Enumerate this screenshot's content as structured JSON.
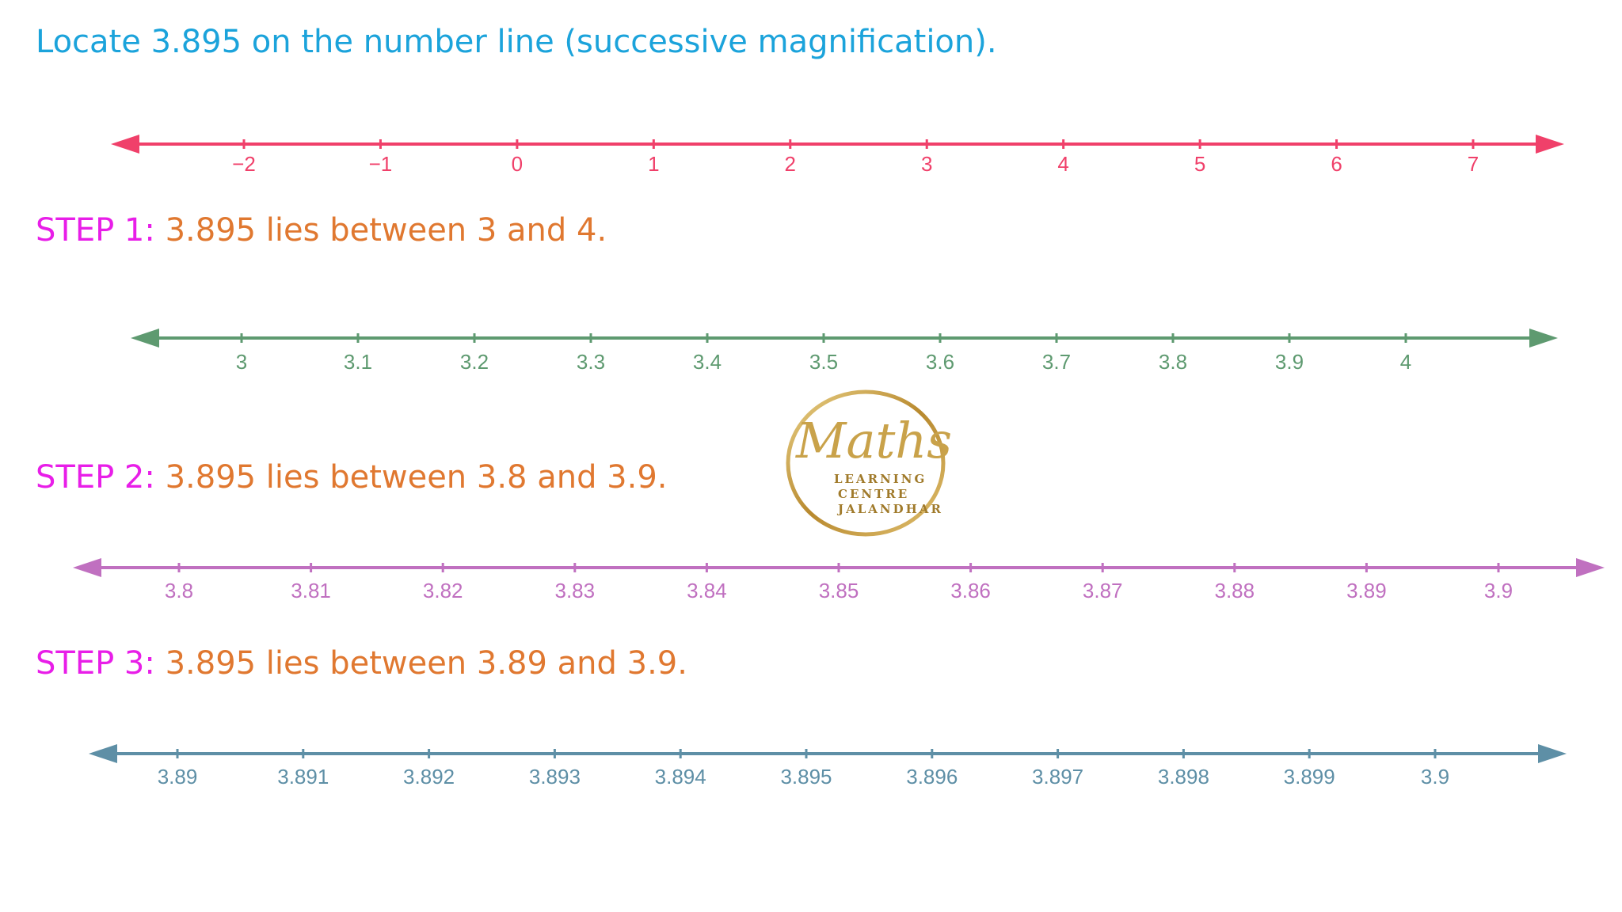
{
  "heading": "Locate 3.895 on the number line (successive magnification).",
  "steps": [
    {
      "label": "STEP 1:",
      "text": " 3.895 lies between 3 and 4."
    },
    {
      "label": "STEP 2:",
      "text": " 3.895 lies between 3.8 and 3.9."
    },
    {
      "label": "STEP 3:",
      "text": " 3.895 lies between 3.89 and 3.9."
    }
  ],
  "logo": {
    "script": "Maths",
    "line1": "LEARNING",
    "line2": "CENTRE",
    "line3": "JALANDHAR"
  },
  "colors": {
    "heading": "#1ba3db",
    "step_label": "#e81ee8",
    "step_text": "#e07830",
    "line0": "#f0406a",
    "line1": "#5e9a70",
    "line2": "#c070c0",
    "line3": "#5e8fa6",
    "logo_gold": "#c9a24a"
  },
  "number_lines": [
    {
      "name": "integers",
      "color": "#f0406a",
      "ticks": [
        "−2",
        "−1",
        "0",
        "1",
        "2",
        "3",
        "4",
        "5",
        "6",
        "7"
      ]
    },
    {
      "name": "tenths",
      "color": "#5e9a70",
      "ticks": [
        "3",
        "3.1",
        "3.2",
        "3.3",
        "3.4",
        "3.5",
        "3.6",
        "3.7",
        "3.8",
        "3.9",
        "4"
      ]
    },
    {
      "name": "hundredths",
      "color": "#c070c0",
      "ticks": [
        "3.8",
        "3.81",
        "3.82",
        "3.83",
        "3.84",
        "3.85",
        "3.86",
        "3.87",
        "3.88",
        "3.89",
        "3.9"
      ]
    },
    {
      "name": "thousandths",
      "color": "#5e8fa6",
      "ticks": [
        "3.89",
        "3.891",
        "3.892",
        "3.893",
        "3.894",
        "3.895",
        "3.896",
        "3.897",
        "3.898",
        "3.899",
        "3.9"
      ]
    }
  ]
}
